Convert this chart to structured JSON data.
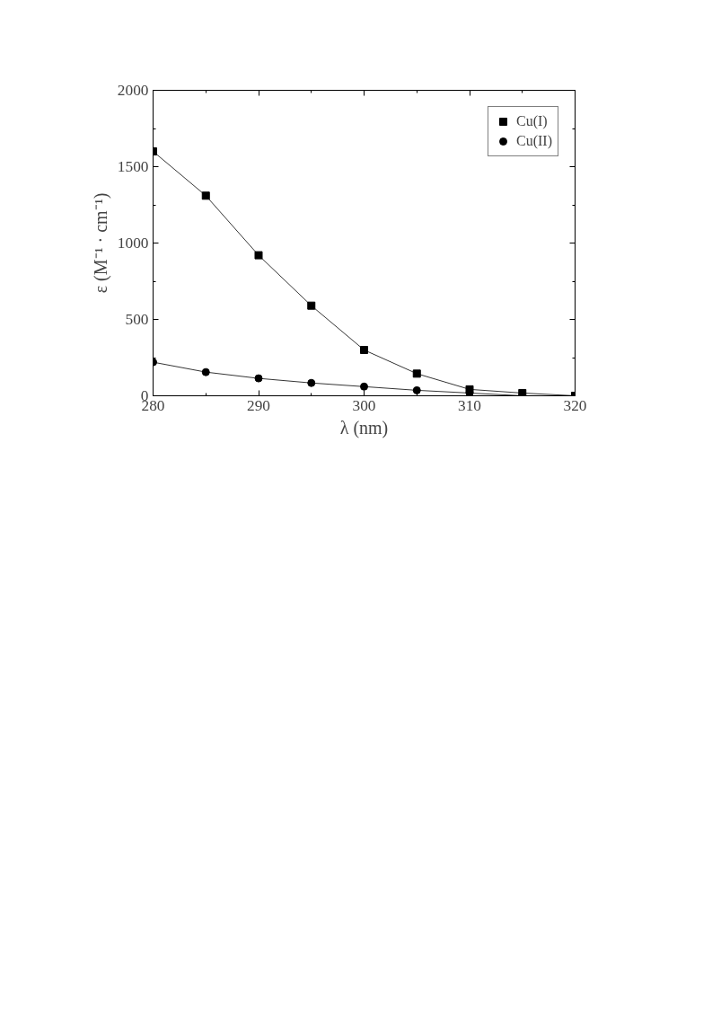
{
  "chart_data": {
    "type": "line",
    "xlabel": "λ (nm)",
    "ylabel": "ε (M⁻¹ · cm⁻¹)",
    "x": [
      280,
      285,
      290,
      295,
      300,
      305,
      310,
      315,
      320
    ],
    "series": [
      {
        "name": "Cu(I)",
        "color": "#000000",
        "marker": "square",
        "values": [
          1600,
          1310,
          920,
          590,
          300,
          145,
          42,
          18,
          0
        ]
      },
      {
        "name": "Cu(II)",
        "color": "#000000",
        "marker": "circle",
        "values": [
          220,
          155,
          114,
          84,
          60,
          36,
          18,
          0,
          0
        ]
      }
    ],
    "xlim": [
      280,
      320
    ],
    "ylim": [
      0,
      2000
    ],
    "xticks": [
      280,
      290,
      300,
      310,
      320
    ],
    "yticks": [
      0,
      500,
      1000,
      1500,
      2000
    ],
    "grid": false,
    "legend": "top right"
  }
}
